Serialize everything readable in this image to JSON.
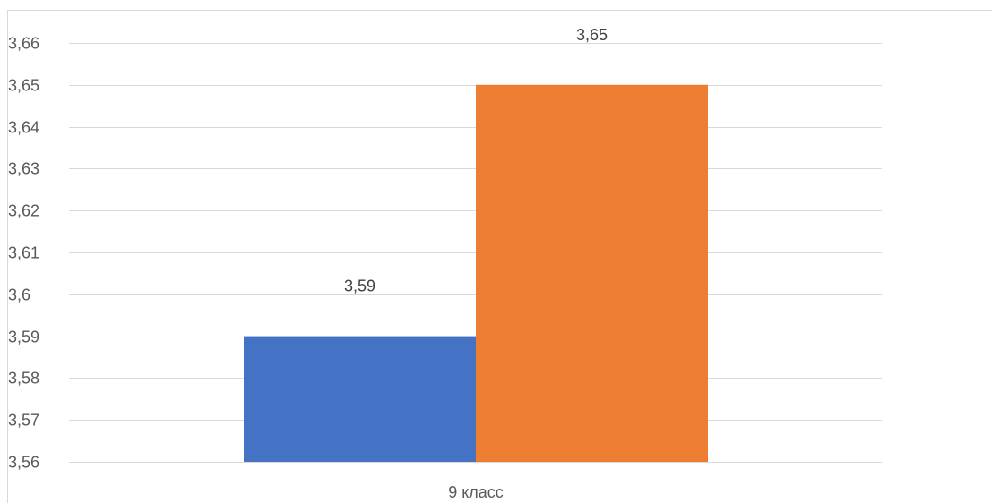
{
  "chart_data": {
    "type": "bar",
    "categories": [
      "9 класс"
    ],
    "series": [
      {
        "values": [
          3.59
        ],
        "color": "#4472C4"
      },
      {
        "values": [
          3.65
        ],
        "color": "#ED7D31"
      }
    ],
    "data_labels": [
      "3,59",
      "3,65"
    ],
    "y_tick_labels": [
      "3,56",
      "3,57",
      "3,58",
      "3,59",
      "3,6",
      "3,61",
      "3,62",
      "3,63",
      "3,64",
      "3,65",
      "3,66"
    ],
    "ylim": [
      3.56,
      3.66
    ],
    "y_step": 0.01,
    "grid": true,
    "title": "",
    "xlabel": "",
    "ylabel": ""
  }
}
